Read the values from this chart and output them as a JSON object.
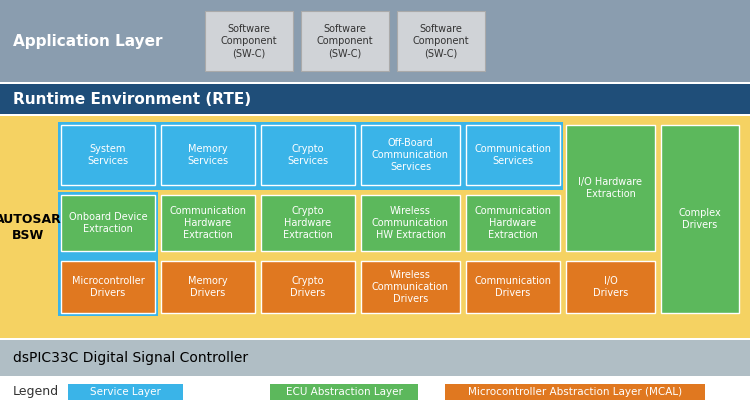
{
  "fig_width": 7.5,
  "fig_height": 4.17,
  "dpi": 100,
  "bg_color": "#ffffff",
  "app_layer_bg": "#8a9daf",
  "app_layer_text": "Application Layer",
  "app_layer_text_color": "#ffffff",
  "sw_component_bg": "#d0d3d7",
  "sw_component_border": "#aaaaaa",
  "sw_components": [
    "Software\nComponent\n(SW-C)",
    "Software\nComponent\n(SW-C)",
    "Software\nComponent\n(SW-C)"
  ],
  "rte_bg": "#1f4e79",
  "rte_text": "Runtime Environment (RTE)",
  "rte_text_color": "#ffffff",
  "bsw_outer_bg": "#f5d262",
  "bsw_label": "AUTOSAR\nBSW",
  "bsw_label_color": "#000000",
  "service_color": "#3ab4e8",
  "ecu_color": "#5cb85c",
  "mcal_color": "#e07820",
  "service_labels": [
    "System\nServices",
    "Memory\nServices",
    "Crypto\nServices",
    "Off-Board\nCommunication\nServices",
    "Communication\nServices"
  ],
  "ecu_labels": [
    "Onboard Device\nExtraction",
    "Communication\nHardware\nExtraction",
    "Crypto\nHardware\nExtraction",
    "Wireless\nCommunication\nHW Extraction",
    "Communication\nHardware\nExtraction"
  ],
  "mcal_labels": [
    "Microcontroller\nDrivers",
    "Memory\nDrivers",
    "Crypto\nDrivers",
    "Wireless\nCommunication\nDrivers",
    "Communication\nDrivers",
    "I/O\nDrivers"
  ],
  "green_right_top": "I/O Hardware\nExtraction",
  "green_right_bottom": "Complex\nDrivers",
  "dsp_bg": "#b0bec5",
  "dsp_text": "dsPIC33C Digital Signal Controller",
  "dsp_text_color": "#000000",
  "legend_service_label": "Service Layer",
  "legend_ecu_label": "ECU Abstraction Layer",
  "legend_mcal_label": "Microcontroller Abstraction Layer (MCAL)"
}
